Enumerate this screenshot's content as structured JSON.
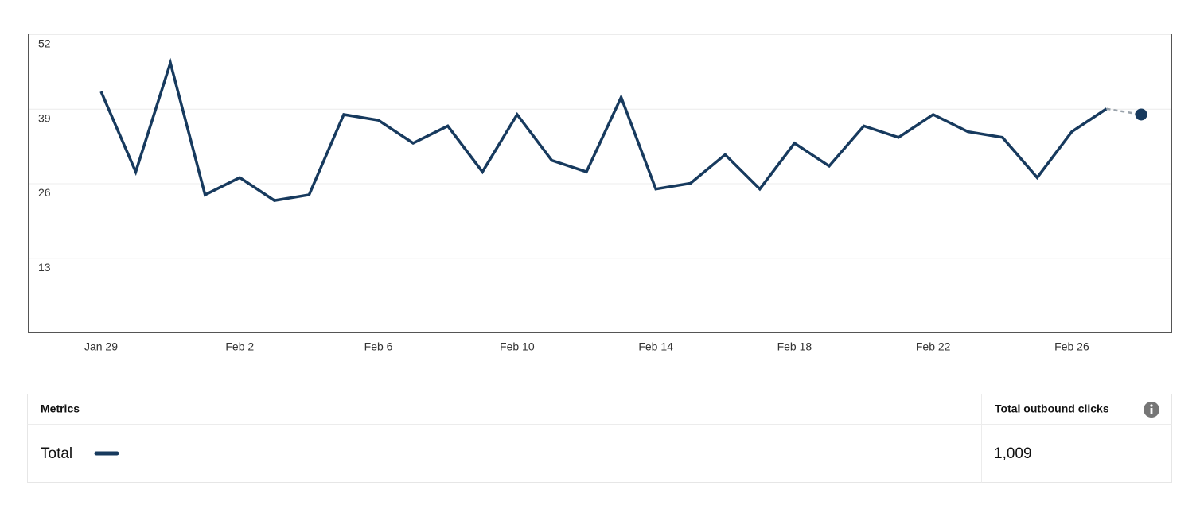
{
  "chart_data": {
    "type": "line",
    "categories": [
      "Jan 29",
      null,
      null,
      null,
      "Feb 2",
      null,
      null,
      null,
      "Feb 6",
      null,
      null,
      null,
      "Feb 10",
      null,
      null,
      null,
      "Feb 14",
      null,
      null,
      null,
      "Feb 18",
      null,
      null,
      null,
      "Feb 22",
      null,
      null,
      null,
      "Feb 26",
      null,
      null
    ],
    "series": [
      {
        "name": "Total",
        "color": "#173a5e",
        "values": [
          42,
          28,
          47,
          24,
          27,
          23,
          24,
          38,
          37,
          33,
          36,
          28,
          38,
          30,
          28,
          41,
          25,
          26,
          31,
          25,
          33,
          29,
          36,
          34,
          38,
          35,
          34,
          27,
          35,
          39,
          38
        ]
      }
    ],
    "ylim": [
      0,
      52
    ],
    "yticks": [
      13,
      26,
      39,
      52
    ],
    "grid": true,
    "dashed_last_segment": true
  },
  "table": {
    "headers": [
      "Metrics",
      "Total outbound clicks"
    ],
    "total_value": "1,009"
  }
}
